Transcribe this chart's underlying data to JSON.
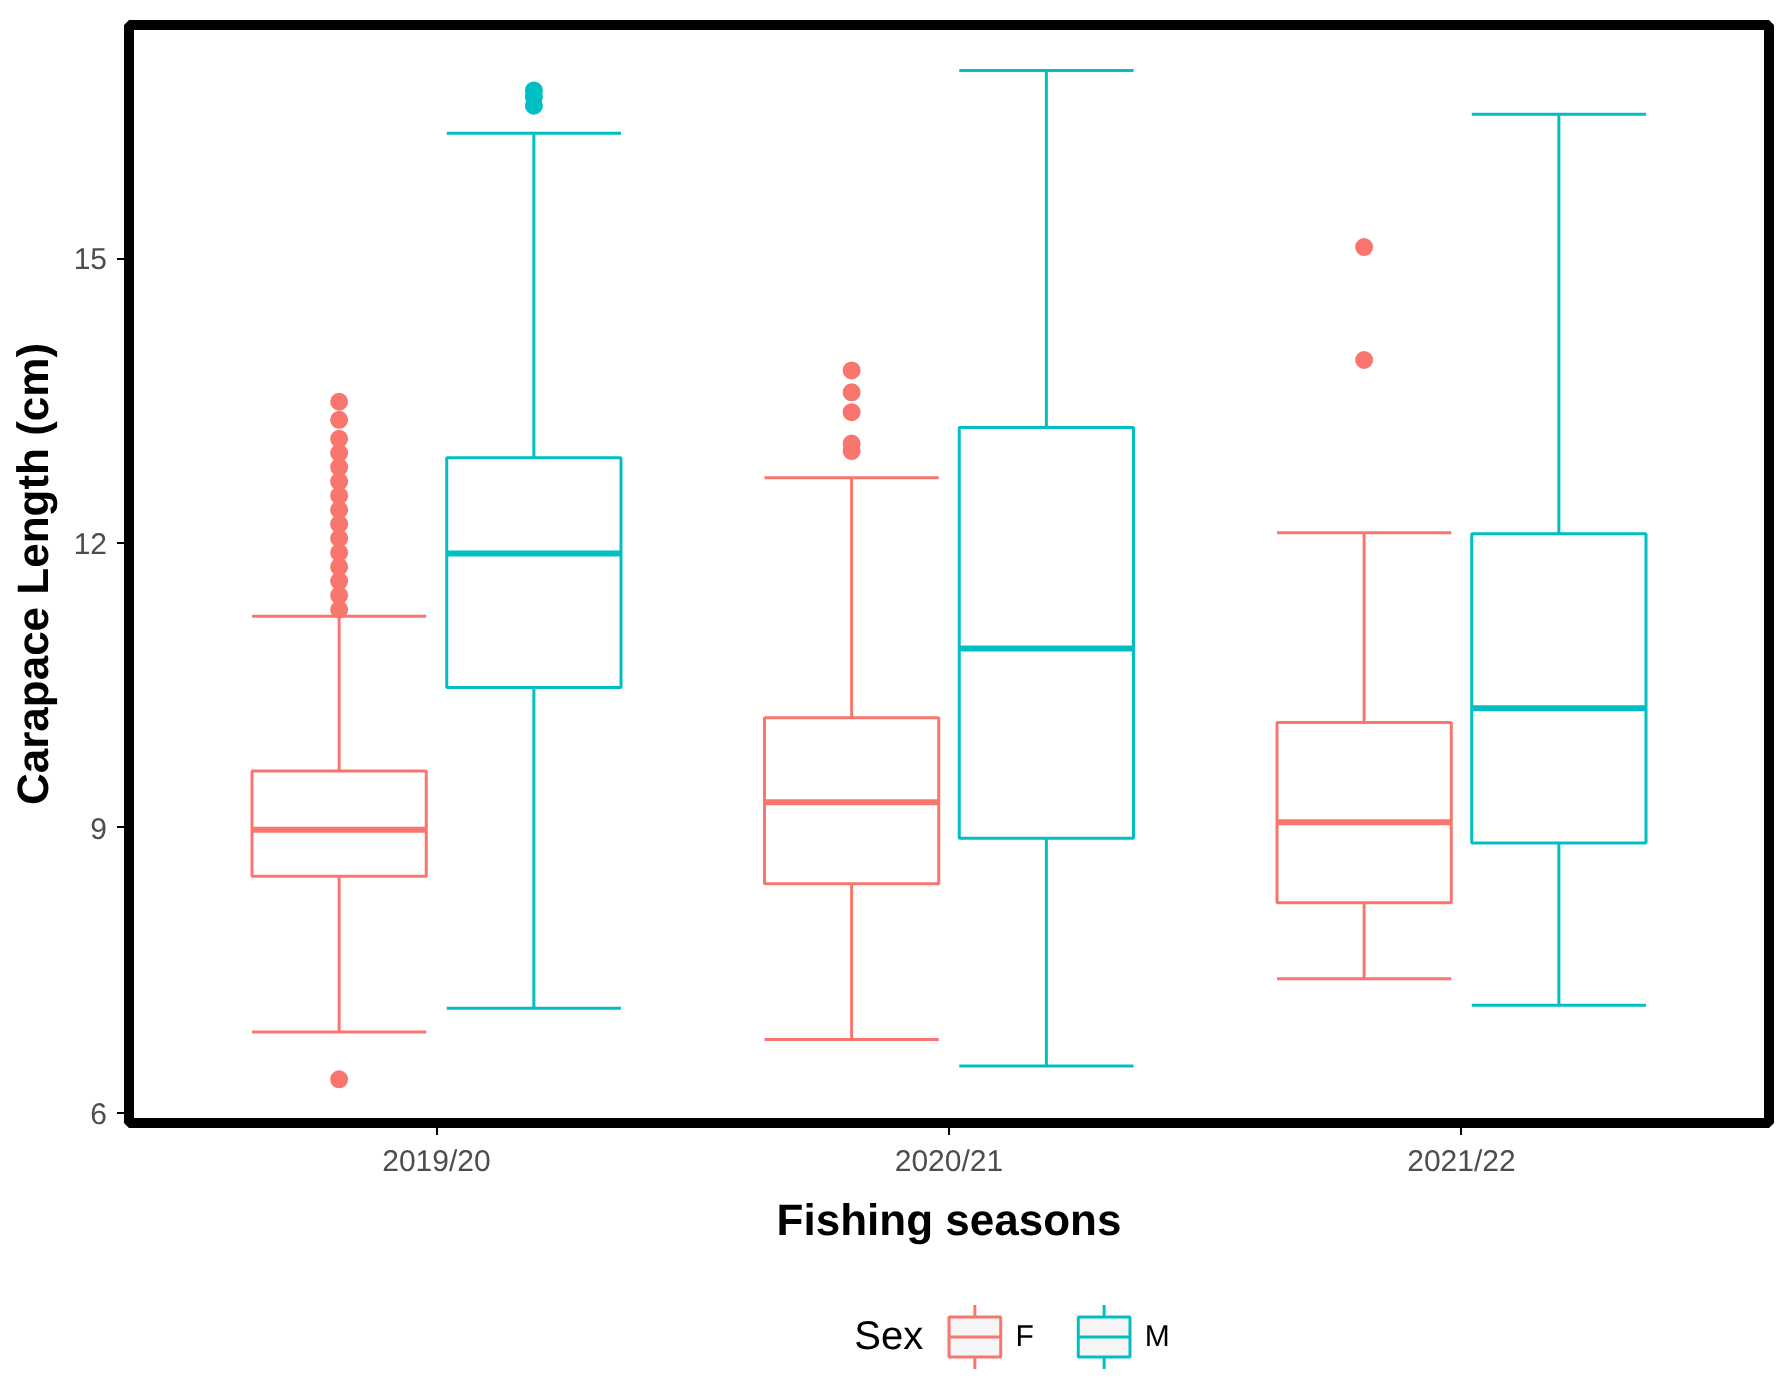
{
  "chart_data": {
    "type": "box",
    "xlabel": "Fishing seasons",
    "ylabel": "Carapace Length (cm)",
    "legend_title": "Sex",
    "legend": "bottom",
    "categories": [
      "2019/20",
      "2020/21",
      "2021/22"
    ],
    "ylim": [
      5.89,
      17.46
    ],
    "yticks": [
      6,
      9,
      12,
      15
    ],
    "series": [
      {
        "name": "F",
        "color": "#f8766d",
        "boxes": [
          {
            "low": 6.85,
            "q1": 8.49,
            "median": 8.98,
            "q3": 9.6,
            "high": 11.23,
            "outliers": [
              6.35,
              11.3,
              11.45,
              11.6,
              11.75,
              11.9,
              12.05,
              12.2,
              12.35,
              12.5,
              12.65,
              12.8,
              12.95,
              13.1,
              13.3,
              13.49
            ]
          },
          {
            "low": 6.77,
            "q1": 8.41,
            "median": 9.27,
            "q3": 10.16,
            "high": 12.69,
            "outliers": [
              12.97,
              13.05,
              13.38,
              13.59,
              13.82
            ]
          },
          {
            "low": 7.41,
            "q1": 8.21,
            "median": 9.06,
            "q3": 10.11,
            "high": 12.11,
            "outliers": [
              13.93,
              15.12
            ]
          }
        ]
      },
      {
        "name": "M",
        "color": "#00bfc4",
        "boxes": [
          {
            "low": 7.1,
            "q1": 10.48,
            "median": 11.89,
            "q3": 12.9,
            "high": 16.32,
            "outliers": [
              16.61,
              16.7,
              16.77
            ]
          },
          {
            "low": 6.49,
            "q1": 8.89,
            "median": 10.89,
            "q3": 13.22,
            "high": 16.98
          },
          {
            "low": 7.13,
            "q1": 8.84,
            "median": 10.26,
            "q3": 12.1,
            "high": 16.52
          }
        ]
      }
    ]
  }
}
